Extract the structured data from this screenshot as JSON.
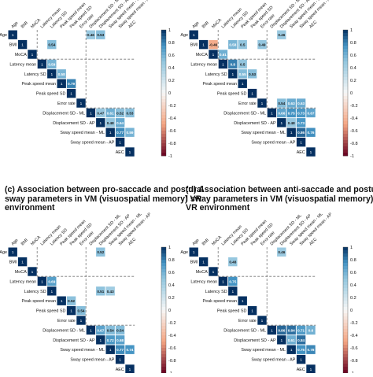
{
  "chart_data": [
    {
      "type": "heatmap",
      "title": "",
      "labels": [
        "Age",
        "BMI",
        "MoCA",
        "Latency mean",
        "Latency SD",
        "Peak speed mean",
        "Peak speed SD",
        "Error rate",
        "Displacement SD - ML",
        "Displacement SD - AP",
        "Sway speed mean - ML",
        "Sway speed mean - AP",
        "AEC"
      ],
      "colorbar_ticks": [
        "1",
        "0.8",
        "0.6",
        "0.4",
        "0.2",
        "0",
        "-0.2",
        "-0.4",
        "-0.6",
        "-0.8",
        "-1"
      ],
      "clim": [
        -1,
        1
      ],
      "cells": [
        {
          "row": 0,
          "col": 8,
          "value": 0.46
        },
        {
          "row": 0,
          "col": 9,
          "value": 0.53
        },
        {
          "row": 1,
          "col": 4,
          "value": 0.54
        },
        {
          "row": 3,
          "col": 4,
          "value": 0.59
        },
        {
          "row": 4,
          "col": 5,
          "value": 0.58
        },
        {
          "row": 5,
          "col": 6,
          "value": 0.79
        },
        {
          "row": 8,
          "col": 9,
          "value": 0.47
        },
        {
          "row": 8,
          "col": 10,
          "value": 0.61
        },
        {
          "row": 8,
          "col": 11,
          "value": 0.52
        },
        {
          "row": 8,
          "col": 12,
          "value": 0.53
        },
        {
          "row": 9,
          "col": 10,
          "value": 0.48
        },
        {
          "row": 9,
          "col": 11,
          "value": 0.64
        },
        {
          "row": 10,
          "col": 11,
          "value": 0.77
        },
        {
          "row": 10,
          "col": 12,
          "value": 0.59
        }
      ]
    },
    {
      "type": "heatmap",
      "title": "",
      "labels": [
        "Age",
        "BMI",
        "MoCA",
        "Latency mean",
        "Latency SD",
        "Peak speed mean",
        "Peak speed SD",
        "Error rate",
        "Displacement SD - ML",
        "Displacement SD - AP",
        "Sway speed mean - ML",
        "Sway speed mean - AP",
        "AEC"
      ],
      "colorbar_ticks": [
        "1",
        "0.8",
        "0.6",
        "0.4",
        "0.2",
        "0",
        "-0.2",
        "-0.4",
        "-0.6",
        "-0.8",
        "-1"
      ],
      "clim": [
        -1,
        1
      ],
      "cells": [
        {
          "row": 0,
          "col": 9,
          "value": 0.46
        },
        {
          "row": 1,
          "col": 2,
          "value": -0.46
        },
        {
          "row": 1,
          "col": 4,
          "value": 0.58
        },
        {
          "row": 1,
          "col": 5,
          "value": 0.5
        },
        {
          "row": 1,
          "col": 7,
          "value": 0.49
        },
        {
          "row": 2,
          "col": 3,
          "value": 0.61
        },
        {
          "row": 3,
          "col": 4,
          "value": 0.8
        },
        {
          "row": 3,
          "col": 5,
          "value": 0.5
        },
        {
          "row": 4,
          "col": 5,
          "value": 0.55
        },
        {
          "row": 4,
          "col": 6,
          "value": 0.53
        },
        {
          "row": 7,
          "col": 9,
          "value": 0.54
        },
        {
          "row": 7,
          "col": 10,
          "value": 0.63
        },
        {
          "row": 7,
          "col": 11,
          "value": 0.63
        },
        {
          "row": 8,
          "col": 9,
          "value": 0.66
        },
        {
          "row": 8,
          "col": 10,
          "value": 0.75
        },
        {
          "row": 8,
          "col": 11,
          "value": 0.73
        },
        {
          "row": 8,
          "col": 12,
          "value": 0.67
        },
        {
          "row": 9,
          "col": 10,
          "value": 0.48
        },
        {
          "row": 9,
          "col": 11,
          "value": 0.73
        },
        {
          "row": 10,
          "col": 11,
          "value": 0.86
        },
        {
          "row": 10,
          "col": 12,
          "value": 0.76
        }
      ]
    },
    {
      "type": "heatmap",
      "title": "(c) Association between pro-saccade and postural sway parameters in VM (visuospatial memory) VR environment",
      "labels": [
        "Age",
        "BMI",
        "MoCA",
        "Latency mean",
        "Latency SD",
        "Peak speed mean",
        "Peak speed SD",
        "Error rate",
        "Displacement SD - ML",
        "Displacement SD - AP",
        "Sway speed mean - ML",
        "Sway speed mean - AP",
        "AEC"
      ],
      "colorbar_ticks": [
        "1",
        "0.8",
        "0.6",
        "0.4",
        "0.2",
        "0",
        "-0.2",
        "-0.4",
        "-0.6",
        "-0.8",
        "-1"
      ],
      "clim": [
        -1,
        1
      ],
      "cells": [
        {
          "row": 0,
          "col": 9,
          "value": 0.52
        },
        {
          "row": 3,
          "col": 4,
          "value": 0.69
        },
        {
          "row": 4,
          "col": 9,
          "value": 0.51
        },
        {
          "row": 4,
          "col": 10,
          "value": 0.43
        },
        {
          "row": 5,
          "col": 6,
          "value": 0.52
        },
        {
          "row": 6,
          "col": 7,
          "value": 0.54
        },
        {
          "row": 8,
          "col": 9,
          "value": 0.67
        },
        {
          "row": 8,
          "col": 10,
          "value": 0.54
        },
        {
          "row": 8,
          "col": 11,
          "value": 0.54
        },
        {
          "row": 9,
          "col": 10,
          "value": 0.72
        },
        {
          "row": 9,
          "col": 11,
          "value": 0.68
        },
        {
          "row": 10,
          "col": 11,
          "value": 0.77
        },
        {
          "row": 10,
          "col": 12,
          "value": 0.74
        }
      ]
    },
    {
      "type": "heatmap",
      "title": "(d) Association between anti-saccade and postural sway parameters in VM (visuospatial memory) VR environment",
      "labels": [
        "Age",
        "BMI",
        "MoCA",
        "Latency mean",
        "Latency SD",
        "Peak speed mean",
        "Peak speed SD",
        "Error rate",
        "Displacement SD - ML",
        "Displacement SD - AP",
        "Sway speed mean - ML",
        "Sway speed mean - AP",
        "AEC"
      ],
      "colorbar_ticks": [
        "1",
        "0.8",
        "0.6",
        "0.4",
        "0.2",
        "0",
        "-0.2",
        "-0.4",
        "-0.6",
        "-0.8",
        "-1"
      ],
      "clim": [
        -1,
        1
      ],
      "cells": [
        {
          "row": 0,
          "col": 9,
          "value": 0.46
        },
        {
          "row": 1,
          "col": 4,
          "value": 0.48
        },
        {
          "row": 3,
          "col": 4,
          "value": 0.75
        },
        {
          "row": 8,
          "col": 9,
          "value": 0.86
        },
        {
          "row": 8,
          "col": 10,
          "value": 0.84
        },
        {
          "row": 8,
          "col": 11,
          "value": 0.71
        },
        {
          "row": 8,
          "col": 12,
          "value": 0.6
        },
        {
          "row": 9,
          "col": 10,
          "value": 0.61
        },
        {
          "row": 9,
          "col": 11,
          "value": 0.84
        },
        {
          "row": 10,
          "col": 11,
          "value": 0.75
        },
        {
          "row": 10,
          "col": 12,
          "value": 0.78
        }
      ]
    }
  ]
}
